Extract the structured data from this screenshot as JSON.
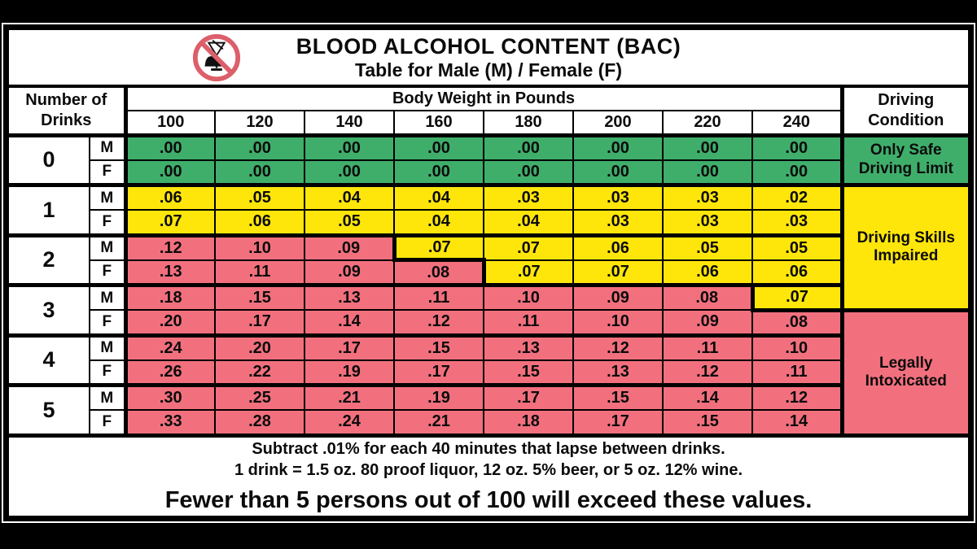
{
  "icon": {
    "name": "no-drinking-and-driving",
    "ring_color": "#DC5F6A"
  },
  "chart_data": {
    "type": "table",
    "title": "BLOOD ALCOHOL CONTENT (BAC)",
    "subtitle": "Table for Male (M) / Female (F)",
    "column_group_label": "Body Weight in Pounds",
    "row_group_label_lines": [
      "Number of",
      "Drinks"
    ],
    "condition_header_lines": [
      "Driving",
      "Condition"
    ],
    "weights": [
      "100",
      "120",
      "140",
      "160",
      "180",
      "200",
      "220",
      "240"
    ],
    "zone_colors": {
      "safe": "#3FAE6B",
      "impaired": "#FFE60A",
      "intoxicated": "#F2707E"
    },
    "conditions": [
      {
        "at_row": 0,
        "span": 2,
        "zone": "safe",
        "lines": [
          "Only Safe",
          "Driving Limit"
        ]
      },
      {
        "at_row": 2,
        "span": 5,
        "zone": "impaired",
        "lines": [
          "Driving Skills",
          "Impaired"
        ]
      },
      {
        "at_row": 7,
        "span": 5,
        "zone": "intoxicated",
        "lines": [
          "Legally",
          "Intoxicated"
        ],
        "thick_top": true
      }
    ],
    "rows": [
      {
        "drinks": "0",
        "sex": "M",
        "values": [
          ".00",
          ".00",
          ".00",
          ".00",
          ".00",
          ".00",
          ".00",
          ".00"
        ],
        "zones": [
          "safe",
          "safe",
          "safe",
          "safe",
          "safe",
          "safe",
          "safe",
          "safe"
        ]
      },
      {
        "sex": "F",
        "values": [
          ".00",
          ".00",
          ".00",
          ".00",
          ".00",
          ".00",
          ".00",
          ".00"
        ],
        "zones": [
          "safe",
          "safe",
          "safe",
          "safe",
          "safe",
          "safe",
          "safe",
          "safe"
        ]
      },
      {
        "drinks": "1",
        "sex": "M",
        "values": [
          ".06",
          ".05",
          ".04",
          ".04",
          ".03",
          ".03",
          ".03",
          ".02"
        ],
        "zones": [
          "impaired",
          "impaired",
          "impaired",
          "impaired",
          "impaired",
          "impaired",
          "impaired",
          "impaired"
        ]
      },
      {
        "sex": "F",
        "values": [
          ".07",
          ".06",
          ".05",
          ".04",
          ".04",
          ".03",
          ".03",
          ".03"
        ],
        "zones": [
          "impaired",
          "impaired",
          "impaired",
          "impaired",
          "impaired",
          "impaired",
          "impaired",
          "impaired"
        ]
      },
      {
        "drinks": "2",
        "sex": "M",
        "values": [
          ".12",
          ".10",
          ".09",
          ".07",
          ".07",
          ".06",
          ".05",
          ".05"
        ],
        "zones": [
          "intoxicated",
          "intoxicated",
          "intoxicated",
          "impaired",
          "impaired",
          "impaired",
          "impaired",
          "impaired"
        ],
        "steps": {
          "3": "lb"
        }
      },
      {
        "sex": "F",
        "values": [
          ".13",
          ".11",
          ".09",
          ".08",
          ".07",
          ".07",
          ".06",
          ".06"
        ],
        "zones": [
          "intoxicated",
          "intoxicated",
          "intoxicated",
          "intoxicated",
          "impaired",
          "impaired",
          "impaired",
          "impaired"
        ],
        "steps": {
          "4": "l"
        }
      },
      {
        "drinks": "3",
        "sex": "M",
        "values": [
          ".18",
          ".15",
          ".13",
          ".11",
          ".10",
          ".09",
          ".08",
          ".07"
        ],
        "zones": [
          "intoxicated",
          "intoxicated",
          "intoxicated",
          "intoxicated",
          "intoxicated",
          "intoxicated",
          "intoxicated",
          "impaired"
        ],
        "steps": {
          "7": "lb"
        }
      },
      {
        "sex": "F",
        "values": [
          ".20",
          ".17",
          ".14",
          ".12",
          ".11",
          ".10",
          ".09",
          ".08"
        ],
        "zones": [
          "intoxicated",
          "intoxicated",
          "intoxicated",
          "intoxicated",
          "intoxicated",
          "intoxicated",
          "intoxicated",
          "intoxicated"
        ]
      },
      {
        "drinks": "4",
        "sex": "M",
        "values": [
          ".24",
          ".20",
          ".17",
          ".15",
          ".13",
          ".12",
          ".11",
          ".10"
        ],
        "zones": [
          "intoxicated",
          "intoxicated",
          "intoxicated",
          "intoxicated",
          "intoxicated",
          "intoxicated",
          "intoxicated",
          "intoxicated"
        ]
      },
      {
        "sex": "F",
        "values": [
          ".26",
          ".22",
          ".19",
          ".17",
          ".15",
          ".13",
          ".12",
          ".11"
        ],
        "zones": [
          "intoxicated",
          "intoxicated",
          "intoxicated",
          "intoxicated",
          "intoxicated",
          "intoxicated",
          "intoxicated",
          "intoxicated"
        ]
      },
      {
        "drinks": "5",
        "sex": "M",
        "values": [
          ".30",
          ".25",
          ".21",
          ".19",
          ".17",
          ".15",
          ".14",
          ".12"
        ],
        "zones": [
          "intoxicated",
          "intoxicated",
          "intoxicated",
          "intoxicated",
          "intoxicated",
          "intoxicated",
          "intoxicated",
          "intoxicated"
        ]
      },
      {
        "sex": "F",
        "values": [
          ".33",
          ".28",
          ".24",
          ".21",
          ".18",
          ".17",
          ".15",
          ".14"
        ],
        "zones": [
          "intoxicated",
          "intoxicated",
          "intoxicated",
          "intoxicated",
          "intoxicated",
          "intoxicated",
          "intoxicated",
          "intoxicated"
        ]
      }
    ],
    "annotations": [
      "Subtract .01% for each 40 minutes that lapse between drinks.",
      "1 drink = 1.5 oz. 80 proof liquor, 12 oz. 5% beer, or 5 oz. 12% wine.",
      "Fewer than 5 persons out of 100 will exceed these values."
    ]
  }
}
